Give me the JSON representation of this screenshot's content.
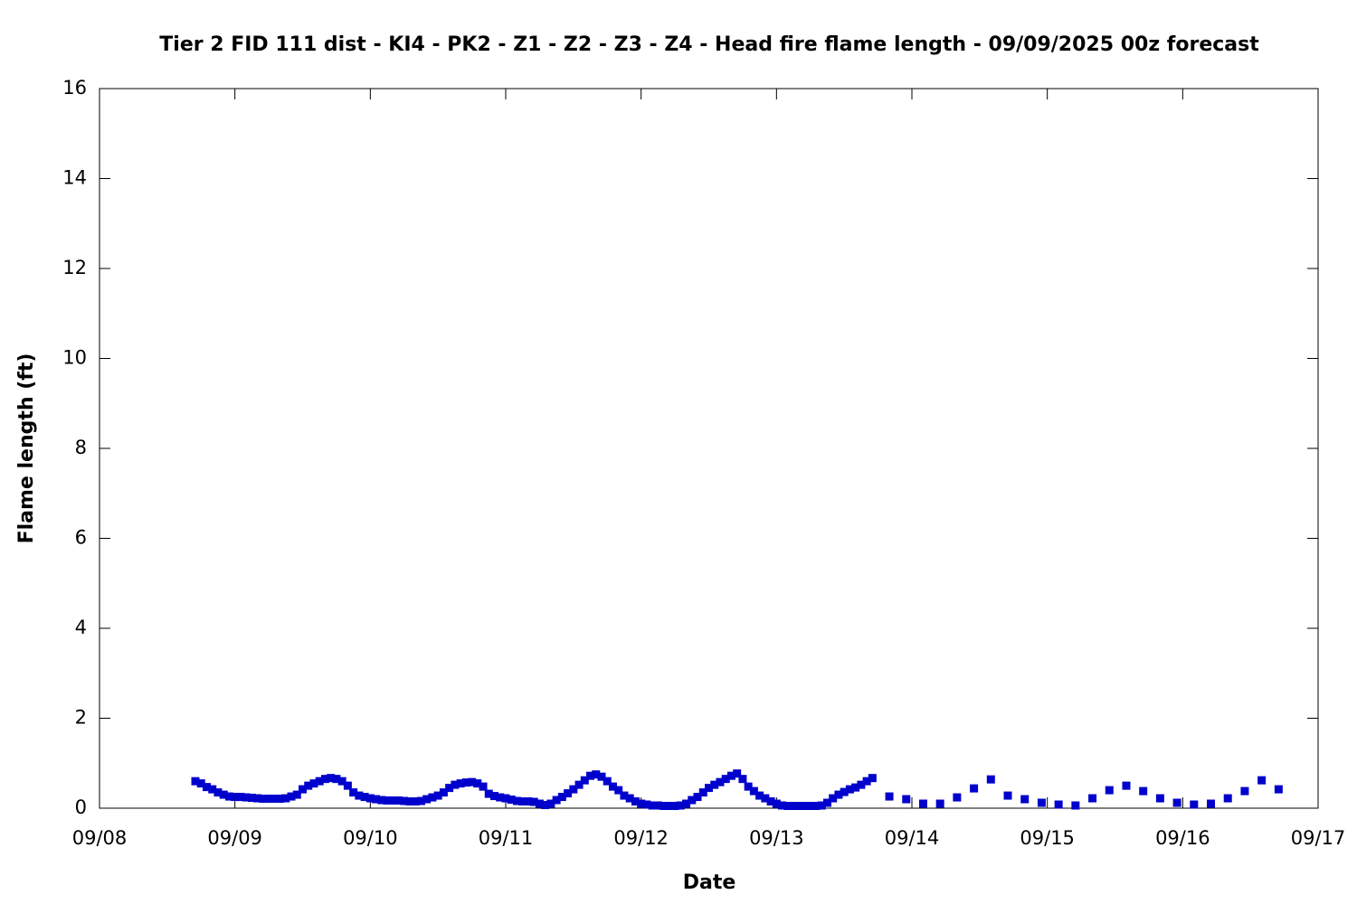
{
  "chart_data": {
    "type": "scatter",
    "title": "Tier 2 FID 111 dist - KI4 - PK2 - Z1 - Z2 - Z3 - Z4 - Head fire flame length - 09/09/2025 00z forecast",
    "x_label": "Date",
    "y_label": "Flame length (ft)",
    "xlim": [
      0,
      216
    ],
    "xticks": [
      {
        "value": 0,
        "label": "09/08"
      },
      {
        "value": 24,
        "label": "09/09"
      },
      {
        "value": 48,
        "label": "09/10"
      },
      {
        "value": 72,
        "label": "09/11"
      },
      {
        "value": 96,
        "label": "09/12"
      },
      {
        "value": 120,
        "label": "09/13"
      },
      {
        "value": 144,
        "label": "09/14"
      },
      {
        "value": 168,
        "label": "09/15"
      },
      {
        "value": 192,
        "label": "09/16"
      },
      {
        "value": 216,
        "label": "09/17"
      }
    ],
    "ylim": [
      0,
      16
    ],
    "yticks": [
      0,
      2,
      4,
      6,
      8,
      10,
      12,
      14,
      16
    ],
    "color": "#0000cc",
    "x": [
      17,
      18,
      19,
      20,
      21,
      22,
      23,
      24,
      25,
      26,
      27,
      28,
      29,
      30,
      31,
      32,
      33,
      34,
      35,
      36,
      37,
      38,
      39,
      40,
      41,
      42,
      43,
      44,
      45,
      46,
      47,
      48,
      49,
      50,
      51,
      52,
      53,
      54,
      55,
      56,
      57,
      58,
      59,
      60,
      61,
      62,
      63,
      64,
      65,
      66,
      67,
      68,
      69,
      70,
      71,
      72,
      73,
      74,
      75,
      76,
      77,
      78,
      79,
      80,
      81,
      82,
      83,
      84,
      85,
      86,
      87,
      88,
      89,
      90,
      91,
      92,
      93,
      94,
      95,
      96,
      97,
      98,
      99,
      100,
      101,
      102,
      103,
      104,
      105,
      106,
      107,
      108,
      109,
      110,
      111,
      112,
      113,
      114,
      115,
      116,
      117,
      118,
      119,
      120,
      121,
      122,
      123,
      124,
      125,
      126,
      127,
      128,
      129,
      130,
      131,
      132,
      133,
      134,
      135,
      136,
      137,
      140,
      143,
      146,
      149,
      152,
      155,
      158,
      161,
      164,
      167,
      170,
      173,
      176,
      179,
      182,
      185,
      188,
      191,
      194,
      197,
      200,
      203,
      206,
      209
    ],
    "values": [
      0.6,
      0.55,
      0.47,
      0.42,
      0.35,
      0.3,
      0.26,
      0.25,
      0.25,
      0.24,
      0.23,
      0.22,
      0.21,
      0.21,
      0.21,
      0.21,
      0.22,
      0.26,
      0.3,
      0.42,
      0.5,
      0.55,
      0.6,
      0.65,
      0.67,
      0.65,
      0.6,
      0.5,
      0.35,
      0.28,
      0.25,
      0.22,
      0.2,
      0.18,
      0.17,
      0.17,
      0.17,
      0.16,
      0.15,
      0.15,
      0.16,
      0.2,
      0.24,
      0.28,
      0.35,
      0.45,
      0.52,
      0.55,
      0.57,
      0.58,
      0.55,
      0.48,
      0.32,
      0.27,
      0.24,
      0.22,
      0.19,
      0.16,
      0.15,
      0.15,
      0.14,
      0.1,
      0.07,
      0.1,
      0.18,
      0.25,
      0.33,
      0.42,
      0.52,
      0.62,
      0.72,
      0.75,
      0.7,
      0.6,
      0.48,
      0.4,
      0.28,
      0.22,
      0.15,
      0.1,
      0.08,
      0.06,
      0.06,
      0.05,
      0.05,
      0.05,
      0.06,
      0.1,
      0.18,
      0.25,
      0.35,
      0.45,
      0.52,
      0.58,
      0.65,
      0.72,
      0.77,
      0.65,
      0.48,
      0.38,
      0.28,
      0.22,
      0.15,
      0.1,
      0.06,
      0.05,
      0.05,
      0.05,
      0.05,
      0.05,
      0.05,
      0.06,
      0.12,
      0.22,
      0.3,
      0.36,
      0.42,
      0.46,
      0.52,
      0.6,
      0.67,
      0.26,
      0.2,
      0.1,
      0.1,
      0.24,
      0.44,
      0.64,
      0.28,
      0.2,
      0.12,
      0.08,
      0.06,
      0.22,
      0.4,
      0.5,
      0.38,
      0.22,
      0.12,
      0.08,
      0.1,
      0.22,
      0.38,
      0.62,
      0.42
    ]
  }
}
